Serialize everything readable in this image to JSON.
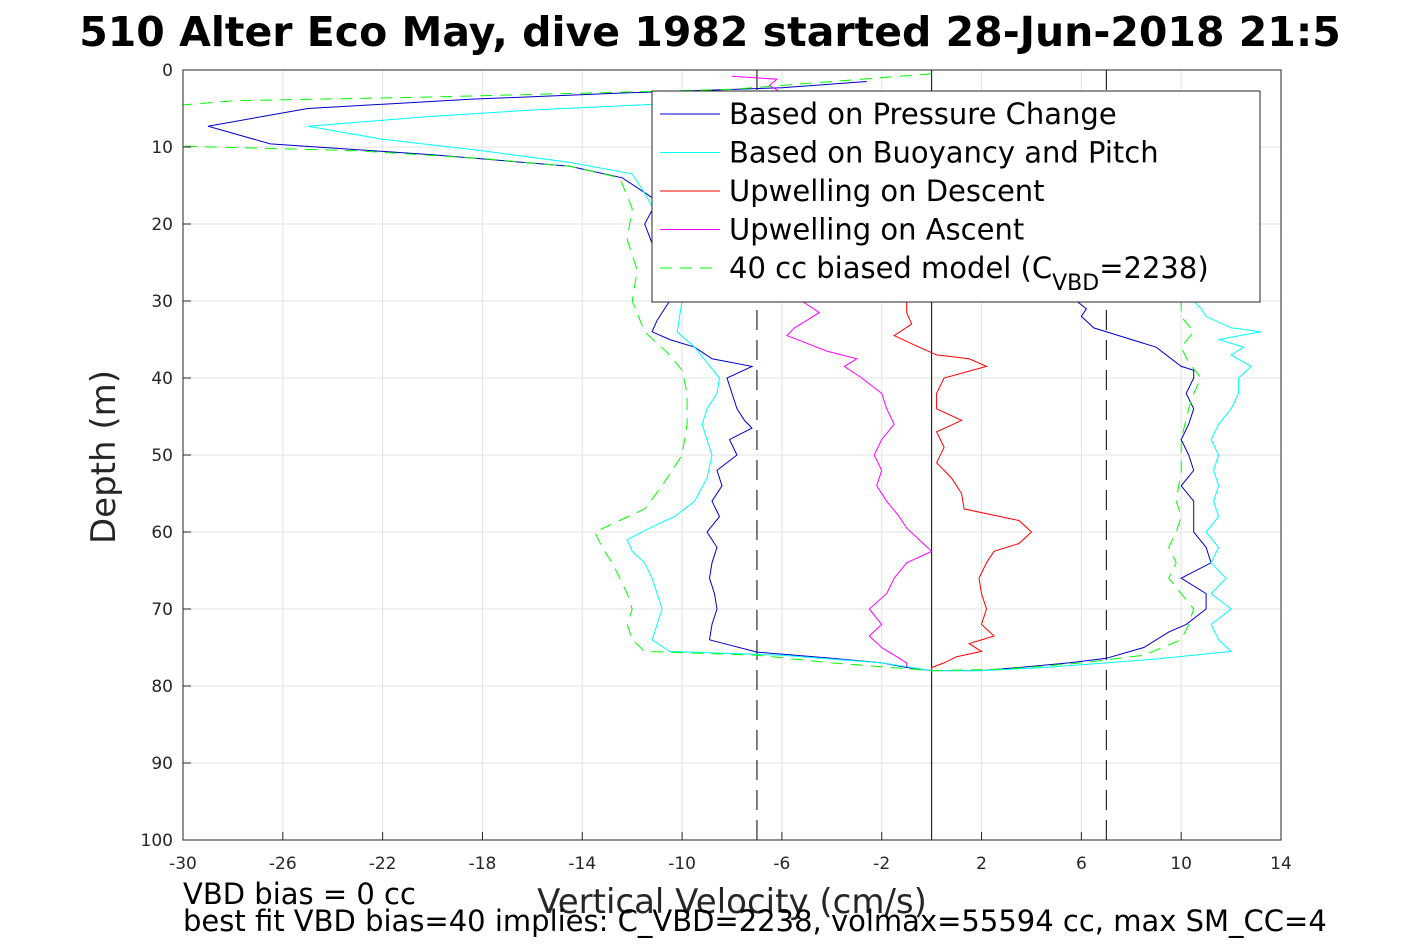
{
  "chart_data": {
    "type": "line",
    "title": "510 Alter Eco May, dive 1982 started 28-Jun-2018 21:5",
    "xlabel": "Vertical Velocity (cm/s)",
    "ylabel": "Depth (m)",
    "xlim": [
      -30,
      14
    ],
    "ylim": [
      0,
      100
    ],
    "y_reversed": true,
    "grid": true,
    "legend_position": "top-right",
    "xticks": [
      "-30",
      "-26",
      "-22",
      "-18",
      "-14",
      "-10",
      "-6",
      "-2",
      "2",
      "6",
      "10",
      "14"
    ],
    "yticks": [
      "0",
      "10",
      "20",
      "30",
      "40",
      "50",
      "60",
      "70",
      "80",
      "90",
      "100"
    ],
    "reference_lines": [
      {
        "x": -7,
        "style": "dashed",
        "color": "#000000"
      },
      {
        "x": 0,
        "style": "solid",
        "color": "#000000"
      },
      {
        "x": 7,
        "style": "dashed",
        "color": "#000000"
      }
    ],
    "series": [
      {
        "name": "Based on Pressure Change",
        "color": "#0000cc",
        "dash": false,
        "points": [
          [
            -2.6,
            1.5
          ],
          [
            -6.0,
            2.3
          ],
          [
            -12.5,
            3.0
          ],
          [
            -18.5,
            3.8
          ],
          [
            -25.0,
            5.0
          ],
          [
            -29.0,
            7.3
          ],
          [
            -26.5,
            9.6
          ],
          [
            -20.0,
            11.0
          ],
          [
            -14.5,
            12.5
          ],
          [
            -12.4,
            14.0
          ],
          [
            -11.0,
            17.0
          ],
          [
            -11.5,
            20.0
          ],
          [
            -11.2,
            22.5
          ],
          [
            -10.8,
            26.0
          ],
          [
            -10.5,
            30.0
          ],
          [
            -11.0,
            32.5
          ],
          [
            -11.2,
            34.0
          ],
          [
            -10.5,
            35.0
          ],
          [
            -9.5,
            36.0
          ],
          [
            -8.8,
            37.5
          ],
          [
            -7.2,
            38.5
          ],
          [
            -8.2,
            40.0
          ],
          [
            -8.0,
            42.0
          ],
          [
            -7.8,
            44.0
          ],
          [
            -7.5,
            45.5
          ],
          [
            -7.2,
            46.5
          ],
          [
            -8.1,
            48.0
          ],
          [
            -7.8,
            50.0
          ],
          [
            -8.6,
            52.0
          ],
          [
            -8.4,
            54.0
          ],
          [
            -8.8,
            56.0
          ],
          [
            -8.5,
            58.0
          ],
          [
            -9.0,
            60.0
          ],
          [
            -8.6,
            62.0
          ],
          [
            -8.8,
            64.0
          ],
          [
            -8.9,
            66.0
          ],
          [
            -8.7,
            68.0
          ],
          [
            -8.6,
            70.0
          ],
          [
            -8.8,
            72.0
          ],
          [
            -8.9,
            74.0
          ],
          [
            -7.0,
            75.6
          ],
          [
            -4.0,
            76.4
          ],
          [
            -2.0,
            77.0
          ],
          [
            -1.0,
            77.6
          ],
          [
            0.0,
            78.0
          ],
          [
            2.0,
            78.0
          ],
          [
            3.5,
            77.6
          ],
          [
            5.5,
            77.0
          ],
          [
            7.0,
            76.4
          ],
          [
            8.5,
            75.0
          ],
          [
            9.5,
            73.0
          ],
          [
            10.2,
            72.0
          ],
          [
            11.0,
            70.0
          ],
          [
            11.0,
            68.0
          ],
          [
            10.0,
            66.0
          ],
          [
            11.2,
            64.0
          ],
          [
            11.0,
            62.0
          ],
          [
            10.5,
            60.0
          ],
          [
            10.5,
            58.0
          ],
          [
            10.5,
            56.0
          ],
          [
            10.0,
            54.0
          ],
          [
            10.5,
            52.0
          ],
          [
            10.3,
            50.0
          ],
          [
            10.0,
            48.0
          ],
          [
            10.3,
            46.0
          ],
          [
            10.5,
            44.0
          ],
          [
            10.2,
            42.0
          ],
          [
            10.5,
            40.0
          ],
          [
            10.5,
            39.0
          ],
          [
            10.0,
            38.5
          ],
          [
            9.0,
            36.0
          ],
          [
            8.0,
            35.0
          ],
          [
            6.5,
            33.5
          ],
          [
            6.0,
            32.0
          ],
          [
            6.2,
            31.0
          ],
          [
            5.8,
            30.0
          ]
        ]
      },
      {
        "name": "Based on Buoyancy and Pitch",
        "color": "#00ffff",
        "dash": false,
        "points": [
          [
            -6.0,
            3.5
          ],
          [
            -11.5,
            4.5
          ],
          [
            -16.0,
            5.2
          ],
          [
            -20.0,
            6.0
          ],
          [
            -25.0,
            7.3
          ],
          [
            -22.0,
            9.0
          ],
          [
            -18.0,
            10.5
          ],
          [
            -14.5,
            12.0
          ],
          [
            -12.0,
            13.5
          ],
          [
            -11.5,
            16.0
          ],
          [
            -10.8,
            20.0
          ],
          [
            -10.5,
            25.0
          ],
          [
            -10.0,
            30.0
          ],
          [
            -10.2,
            34.0
          ],
          [
            -9.5,
            36.0
          ],
          [
            -9.0,
            38.0
          ],
          [
            -8.5,
            40.0
          ],
          [
            -8.6,
            42.0
          ],
          [
            -9.0,
            44.0
          ],
          [
            -9.2,
            46.0
          ],
          [
            -9.0,
            48.0
          ],
          [
            -8.8,
            50.0
          ],
          [
            -9.0,
            53.0
          ],
          [
            -9.5,
            56.0
          ],
          [
            -10.3,
            58.0
          ],
          [
            -11.3,
            59.5
          ],
          [
            -12.2,
            61.0
          ],
          [
            -12.0,
            62.5
          ],
          [
            -11.5,
            64.0
          ],
          [
            -11.2,
            66.0
          ],
          [
            -11.0,
            68.0
          ],
          [
            -10.8,
            70.0
          ],
          [
            -11.0,
            72.0
          ],
          [
            -11.2,
            74.0
          ],
          [
            -10.5,
            75.5
          ],
          [
            -6.0,
            76.0
          ],
          [
            -2.0,
            77.0
          ],
          [
            0.0,
            78.0
          ],
          [
            2.0,
            78.0
          ],
          [
            4.5,
            77.6
          ],
          [
            7.0,
            77.0
          ],
          [
            9.0,
            76.5
          ],
          [
            12.0,
            75.5
          ],
          [
            11.5,
            74.0
          ],
          [
            11.2,
            72.0
          ],
          [
            12.0,
            70.0
          ],
          [
            11.2,
            68.0
          ],
          [
            11.8,
            66.0
          ],
          [
            11.2,
            64.0
          ],
          [
            11.5,
            62.0
          ],
          [
            11.0,
            60.0
          ],
          [
            11.5,
            58.0
          ],
          [
            11.3,
            56.0
          ],
          [
            11.5,
            54.0
          ],
          [
            11.3,
            52.0
          ],
          [
            11.5,
            50.0
          ],
          [
            11.2,
            48.0
          ],
          [
            11.5,
            46.0
          ],
          [
            12.0,
            44.0
          ],
          [
            12.3,
            42.0
          ],
          [
            12.3,
            40.0
          ],
          [
            12.8,
            38.5
          ],
          [
            12.0,
            37.0
          ],
          [
            12.5,
            36.0
          ],
          [
            11.5,
            35.0
          ],
          [
            13.2,
            34.0
          ],
          [
            12.0,
            33.5
          ],
          [
            11.0,
            32.0
          ],
          [
            10.8,
            31.0
          ],
          [
            10.5,
            30.0
          ]
        ]
      },
      {
        "name": "Upwelling on Descent",
        "color": "#ff0000",
        "dash": false,
        "points": [
          [
            -1.0,
            4.0
          ],
          [
            -3.0,
            4.2
          ],
          [
            -5.0,
            4.5
          ],
          [
            -7.0,
            5.0
          ],
          [
            -8.0,
            5.5
          ],
          [
            -1.0,
            30.0
          ],
          [
            -1.0,
            31.5
          ],
          [
            -0.8,
            33.0
          ],
          [
            -1.5,
            34.5
          ],
          [
            -0.5,
            36.0
          ],
          [
            0.2,
            37.0
          ],
          [
            1.5,
            37.5
          ],
          [
            2.2,
            38.5
          ],
          [
            0.5,
            40.0
          ],
          [
            0.2,
            42.0
          ],
          [
            0.2,
            44.0
          ],
          [
            1.2,
            45.5
          ],
          [
            0.2,
            47.0
          ],
          [
            0.5,
            49.0
          ],
          [
            0.2,
            51.0
          ],
          [
            0.8,
            53.0
          ],
          [
            1.2,
            55.0
          ],
          [
            1.3,
            57.0
          ],
          [
            3.5,
            58.5
          ],
          [
            4.0,
            60.0
          ],
          [
            3.5,
            61.5
          ],
          [
            2.5,
            62.5
          ],
          [
            2.2,
            64.0
          ],
          [
            1.9,
            66.0
          ],
          [
            2.0,
            68.0
          ],
          [
            2.2,
            70.0
          ],
          [
            2.0,
            72.0
          ],
          [
            2.5,
            73.5
          ],
          [
            1.5,
            74.5
          ],
          [
            2.0,
            75.5
          ],
          [
            1.0,
            76.2
          ],
          [
            0.5,
            77.0
          ],
          [
            0.0,
            77.6
          ],
          [
            0.0,
            78.0
          ]
        ]
      },
      {
        "name": "Upwelling on Ascent",
        "color": "#ff00ff",
        "dash": false,
        "points": [
          [
            -8.0,
            0.8
          ],
          [
            -6.2,
            1.2
          ],
          [
            -6.5,
            2.0
          ],
          [
            -6.0,
            3.0
          ],
          [
            -5.8,
            5.0
          ],
          [
            -6.0,
            10.0
          ],
          [
            -6.2,
            20.0
          ],
          [
            -5.2,
            30.0
          ],
          [
            -4.5,
            31.5
          ],
          [
            -5.0,
            32.5
          ],
          [
            -5.5,
            33.5
          ],
          [
            -5.8,
            34.5
          ],
          [
            -5.0,
            35.5
          ],
          [
            -4.2,
            36.5
          ],
          [
            -3.0,
            37.5
          ],
          [
            -3.5,
            38.5
          ],
          [
            -2.8,
            40.0
          ],
          [
            -2.0,
            42.0
          ],
          [
            -1.8,
            44.0
          ],
          [
            -1.5,
            46.0
          ],
          [
            -2.0,
            48.0
          ],
          [
            -2.3,
            50.0
          ],
          [
            -2.0,
            52.0
          ],
          [
            -2.2,
            54.0
          ],
          [
            -1.8,
            56.0
          ],
          [
            -1.3,
            58.0
          ],
          [
            -1.0,
            59.5
          ],
          [
            -0.5,
            61.0
          ],
          [
            0.0,
            62.5
          ],
          [
            -1.0,
            64.0
          ],
          [
            -1.5,
            66.0
          ],
          [
            -1.8,
            68.0
          ],
          [
            -2.5,
            70.0
          ],
          [
            -2.0,
            72.0
          ],
          [
            -2.5,
            73.5
          ],
          [
            -2.0,
            75.0
          ],
          [
            -1.5,
            76.0
          ],
          [
            -1.0,
            77.0
          ],
          [
            -1.0,
            77.5
          ]
        ]
      },
      {
        "name": "40 cc biased model (C<sub>VBD</sub>=2238)",
        "name_parts": [
          "40 cc biased model (C",
          "VBD",
          "=2238)"
        ],
        "color": "#00ff00",
        "dash": true,
        "points": [
          [
            0.0,
            0.5
          ],
          [
            -8.0,
            2.5
          ],
          [
            -20.0,
            3.5
          ],
          [
            -28.0,
            4.0
          ],
          [
            -31.0,
            4.8
          ],
          [
            -31.0,
            9.8
          ],
          [
            -23.0,
            10.5
          ],
          [
            -18.0,
            11.5
          ],
          [
            -14.5,
            12.5
          ],
          [
            -12.5,
            14.0
          ],
          [
            -12.0,
            18.0
          ],
          [
            -12.2,
            22.0
          ],
          [
            -11.8,
            26.0
          ],
          [
            -12.0,
            30.0
          ],
          [
            -11.5,
            34.0
          ],
          [
            -11.0,
            35.5
          ],
          [
            -10.5,
            37.0
          ],
          [
            -10.0,
            39.0
          ],
          [
            -9.8,
            42.0
          ],
          [
            -9.8,
            46.0
          ],
          [
            -10.0,
            50.0
          ],
          [
            -10.8,
            54.0
          ],
          [
            -11.5,
            57.0
          ],
          [
            -12.5,
            58.5
          ],
          [
            -13.5,
            60.0
          ],
          [
            -13.2,
            62.0
          ],
          [
            -12.8,
            64.0
          ],
          [
            -12.5,
            66.0
          ],
          [
            -12.2,
            68.0
          ],
          [
            -12.0,
            70.0
          ],
          [
            -12.2,
            72.0
          ],
          [
            -12.0,
            74.0
          ],
          [
            -11.5,
            75.5
          ],
          [
            -7.0,
            76.0
          ],
          [
            -4.0,
            77.0
          ],
          [
            0.0,
            78.0
          ],
          [
            3.0,
            77.8
          ],
          [
            6.0,
            77.0
          ],
          [
            8.5,
            76.0
          ],
          [
            10.0,
            74.0
          ],
          [
            10.3,
            72.0
          ],
          [
            10.5,
            70.0
          ],
          [
            10.0,
            68.0
          ],
          [
            9.5,
            66.0
          ],
          [
            9.8,
            64.0
          ],
          [
            9.5,
            62.0
          ],
          [
            9.8,
            60.0
          ],
          [
            10.0,
            58.0
          ],
          [
            9.8,
            56.0
          ],
          [
            10.0,
            52.0
          ],
          [
            10.0,
            48.0
          ],
          [
            10.3,
            44.0
          ],
          [
            10.5,
            42.0
          ],
          [
            10.8,
            40.0
          ],
          [
            10.3,
            38.0
          ],
          [
            10.0,
            36.0
          ],
          [
            10.5,
            34.0
          ],
          [
            10.0,
            32.0
          ],
          [
            10.0,
            30.0
          ]
        ]
      }
    ]
  },
  "notes": {
    "line1": "VBD bias = 0 cc",
    "line2": "best fit VBD bias=40 implies: C_VBD=2238, volmax=55594 cc, max SM_CC=4"
  }
}
